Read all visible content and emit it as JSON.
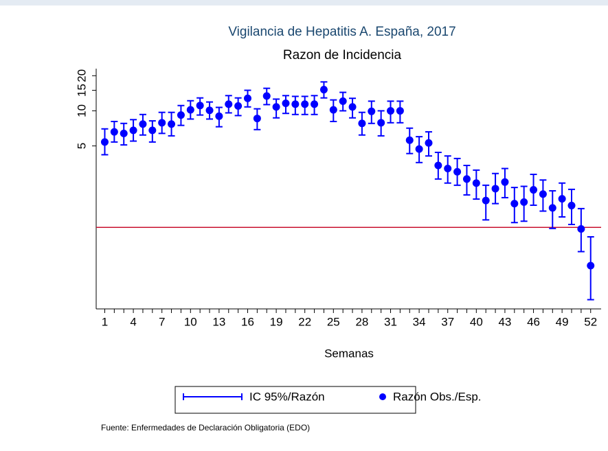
{
  "chart_data": {
    "type": "errorbar",
    "title": "Vigilancia de Hepatitis A. España, 2017",
    "subtitle": "Razon de Incidencia",
    "x_label": "Semanas",
    "source": "Fuente: Enfermedades de Declaración Obligatoria (EDO)",
    "log_y": true,
    "x": [
      1,
      2,
      3,
      4,
      5,
      6,
      7,
      8,
      9,
      10,
      11,
      12,
      13,
      14,
      15,
      16,
      17,
      18,
      19,
      20,
      21,
      22,
      23,
      24,
      25,
      26,
      27,
      28,
      29,
      30,
      31,
      32,
      33,
      34,
      35,
      36,
      37,
      38,
      39,
      40,
      41,
      42,
      43,
      44,
      45,
      46,
      47,
      48,
      49,
      50,
      51,
      52
    ],
    "series": [
      {
        "name": "Razón Obs./Esp.",
        "color": "#0000ff",
        "values": [
          5.4,
          6.6,
          6.4,
          6.8,
          7.7,
          6.8,
          7.9,
          7.7,
          9.2,
          10.2,
          11.1,
          10.1,
          9.0,
          11.4,
          11.0,
          12.8,
          8.6,
          13.4,
          10.8,
          11.6,
          11.4,
          11.4,
          11.4,
          15.2,
          10.2,
          12.1,
          10.8,
          7.8,
          9.9,
          7.9,
          10.0,
          10.0,
          5.6,
          4.7,
          5.3,
          3.4,
          3.2,
          3.0,
          2.6,
          2.4,
          1.7,
          2.15,
          2.45,
          1.6,
          1.65,
          2.1,
          1.93,
          1.47,
          1.76,
          1.54,
          0.97,
          0.47
        ]
      },
      {
        "name": "IC 95%/Razón",
        "color": "#0000ff",
        "lower": [
          4.2,
          5.4,
          5.1,
          5.5,
          6.2,
          5.4,
          6.4,
          6.1,
          7.5,
          8.5,
          9.2,
          8.5,
          7.3,
          9.6,
          9.1,
          10.8,
          6.9,
          11.3,
          8.7,
          9.5,
          9.3,
          9.3,
          9.3,
          12.9,
          8.1,
          10.0,
          8.7,
          6.2,
          7.8,
          6.1,
          7.9,
          7.9,
          4.3,
          3.6,
          4.1,
          2.6,
          2.4,
          2.3,
          1.9,
          1.75,
          1.16,
          1.6,
          1.8,
          1.1,
          1.13,
          1.55,
          1.38,
          0.98,
          1.23,
          1.06,
          0.62,
          0.24
        ],
        "upper": [
          7.0,
          8.1,
          7.8,
          8.4,
          9.3,
          8.2,
          9.7,
          9.7,
          11.1,
          12.2,
          12.9,
          11.9,
          10.7,
          13.5,
          12.9,
          15.0,
          10.4,
          15.6,
          12.6,
          13.5,
          13.3,
          13.3,
          13.5,
          17.7,
          12.4,
          14.4,
          12.8,
          9.7,
          12.1,
          10.0,
          12.1,
          12.1,
          7.1,
          6.0,
          6.6,
          4.4,
          4.1,
          3.9,
          3.4,
          3.1,
          2.3,
          2.9,
          3.2,
          2.2,
          2.25,
          2.85,
          2.55,
          2.06,
          2.4,
          2.12,
          1.45,
          0.83
        ]
      }
    ],
    "reference_line": 1,
    "reference_color": "#c8102e",
    "xlim": [
      0.1,
      53.1
    ],
    "xticks": [
      1,
      4,
      7,
      10,
      13,
      16,
      19,
      22,
      25,
      28,
      31,
      34,
      37,
      40,
      43,
      46,
      49,
      52
    ],
    "xminorticks": [
      2,
      3,
      5,
      6,
      8,
      9,
      11,
      12,
      14,
      15,
      17,
      18,
      20,
      21,
      23,
      24,
      26,
      27,
      29,
      30,
      32,
      33,
      35,
      36,
      38,
      39,
      41,
      42,
      44,
      45,
      47,
      48,
      50,
      51
    ],
    "ylim": [
      0.2,
      23
    ],
    "yticks": [
      5,
      10,
      15,
      20
    ]
  }
}
